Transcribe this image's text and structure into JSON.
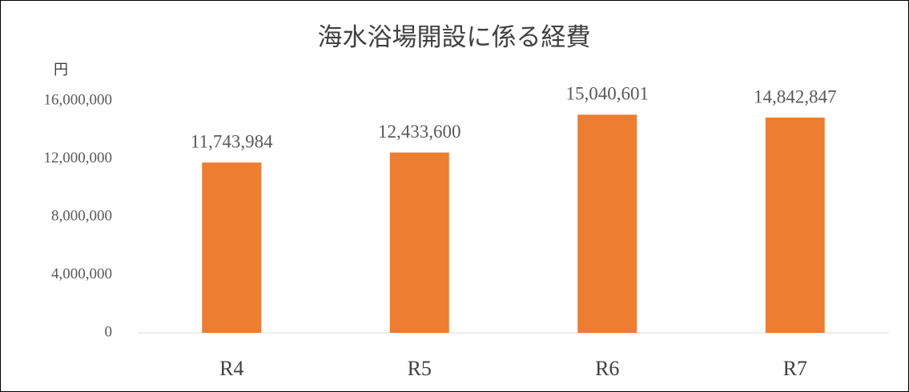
{
  "chart_data": {
    "type": "bar",
    "title": "海水浴場開設に係る経費",
    "y_label": "円",
    "categories": [
      "R4",
      "R5",
      "R6",
      "R7"
    ],
    "values": [
      11743984,
      12433600,
      15040601,
      14842847
    ],
    "value_labels": [
      "11,743,984",
      "12,433,600",
      "15,040,601",
      "14,842,847"
    ],
    "color": "#ed7d31",
    "ylim": [
      0,
      16000000
    ],
    "yticks": [
      0,
      {
        "value": 4000000,
        "label": "4,000,000"
      },
      {
        "value": 8000000,
        "label": "8,000,000"
      },
      {
        "value": 12000000,
        "label": "12,000,000"
      },
      {
        "value": 16000000,
        "label": "16,000,000"
      }
    ],
    "grid": false
  }
}
